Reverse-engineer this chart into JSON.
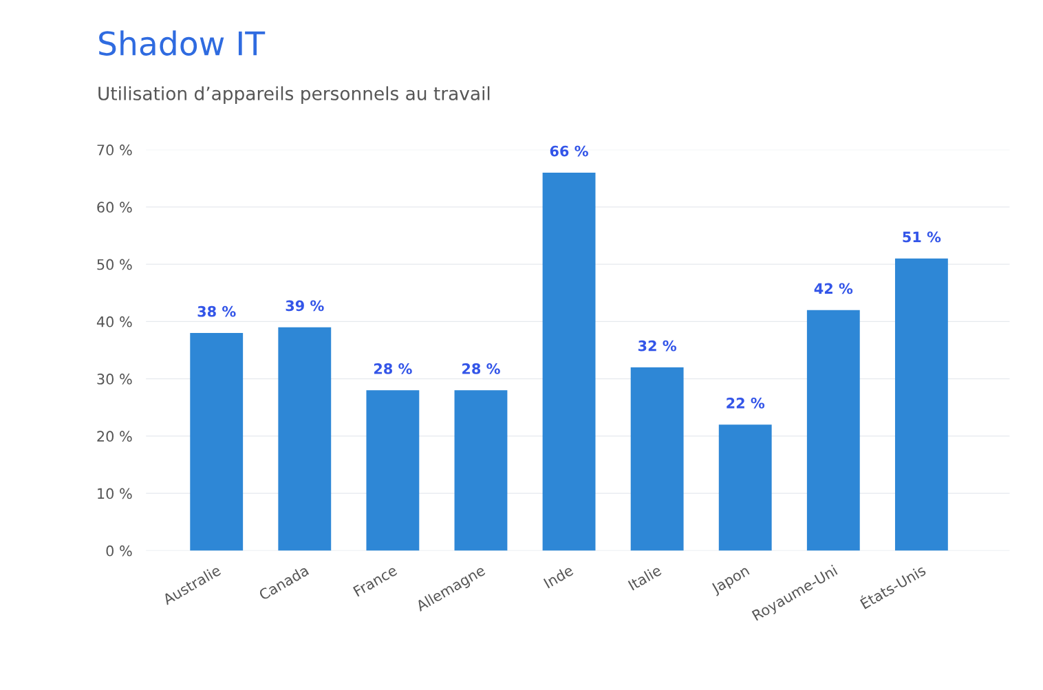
{
  "chart_data": {
    "type": "bar",
    "title": "Shadow IT",
    "subtitle": "Utilisation d’appareils personnels au travail",
    "categories": [
      "Australie",
      "Canada",
      "France",
      "Allemagne",
      "Inde",
      "Italie",
      "Japon",
      "Royaume-Uni",
      "États-Unis"
    ],
    "values": [
      38,
      39,
      28,
      28,
      66,
      32,
      22,
      42,
      51
    ],
    "value_labels": [
      "38 %",
      "39 %",
      "28 %",
      "28 %",
      "66 %",
      "32 %",
      "22 %",
      "42 %",
      "51 %"
    ],
    "color": "#2e87d6",
    "ylim": [
      0,
      70
    ],
    "yticks": [
      {
        "value": 0,
        "label": "0 %"
      },
      {
        "value": 10,
        "label": "10 %"
      },
      {
        "value": 20,
        "label": "20 %"
      },
      {
        "value": 30,
        "label": "30 %"
      },
      {
        "value": 40,
        "label": "40 %"
      },
      {
        "value": 50,
        "label": "50 %"
      },
      {
        "value": 60,
        "label": "60 %"
      },
      {
        "value": 70,
        "label": "70 %"
      }
    ],
    "grid": "y"
  }
}
